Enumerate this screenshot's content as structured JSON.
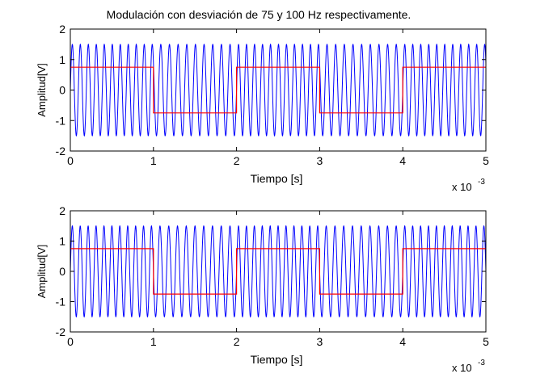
{
  "figure": {
    "title": "Modulación con desviación de 75 y 100 Hz respectivamente."
  },
  "chart_data": [
    {
      "type": "line",
      "title": "Modulación con desviación de 75 y 100 Hz respectivamente.",
      "xlabel": "Tiempo [s]",
      "ylabel": "Amplitud[V]",
      "x_exponent_label": "x 10",
      "x_exponent_power": "-3",
      "xlim": [
        0,
        5
      ],
      "ylim": [
        -2,
        2
      ],
      "xticks": [
        "0",
        "1",
        "2",
        "3",
        "4",
        "5"
      ],
      "yticks": [
        "2",
        "1",
        "0",
        "-1",
        "-2"
      ],
      "grid": false,
      "series": [
        {
          "role": "carrier",
          "color": "#0000ff",
          "amplitude": 1.5,
          "carrier_cycles_per_unit": 10,
          "frequency_deviation_fraction": 0.04
        },
        {
          "role": "data",
          "color": "#ff0000",
          "x": [
            0,
            1,
            1,
            2,
            2,
            3,
            3,
            4,
            4,
            5
          ],
          "y": [
            0.75,
            0.75,
            -0.75,
            -0.75,
            0.75,
            0.75,
            -0.75,
            -0.75,
            0.75,
            0.75
          ]
        }
      ]
    },
    {
      "type": "line",
      "title": "",
      "xlabel": "Tiempo [s]",
      "ylabel": "Amplitud[V]",
      "x_exponent_label": "x 10",
      "x_exponent_power": "-3",
      "xlim": [
        0,
        5
      ],
      "ylim": [
        -2,
        2
      ],
      "xticks": [
        "0",
        "1",
        "2",
        "3",
        "4",
        "5"
      ],
      "yticks": [
        "2",
        "1",
        "0",
        "-1",
        "-2"
      ],
      "grid": false,
      "series": [
        {
          "role": "carrier",
          "color": "#0000ff",
          "amplitude": 1.5,
          "carrier_cycles_per_unit": 10,
          "frequency_deviation_fraction": 0.05
        },
        {
          "role": "data",
          "color": "#ff0000",
          "x": [
            0,
            1,
            1,
            2,
            2,
            3,
            3,
            4,
            4,
            5
          ],
          "y": [
            0.75,
            0.75,
            -0.75,
            -0.75,
            0.75,
            0.75,
            -0.75,
            -0.75,
            0.75,
            0.75
          ]
        }
      ]
    }
  ]
}
